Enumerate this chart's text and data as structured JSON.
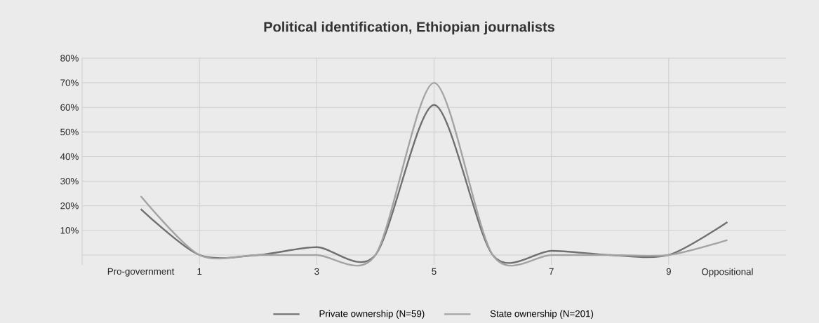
{
  "chart_data": {
    "type": "line",
    "title": "Political identification, Ethiopian journalists",
    "x": [
      0,
      1,
      2,
      3,
      4,
      5,
      6,
      7,
      8,
      9,
      10
    ],
    "series": [
      {
        "name": "Private ownership (N=59)",
        "color": "#707070",
        "values": [
          18.7,
          0,
          0,
          3.2,
          0,
          61,
          0,
          1.7,
          0,
          0,
          13.4
        ]
      },
      {
        "name": "State ownership (N=201)",
        "color": "#a3a3a3",
        "values": [
          23.9,
          0,
          0,
          0,
          0,
          70,
          0,
          0,
          0,
          0,
          6.1
        ]
      }
    ],
    "xlim": [
      -1,
      11
    ],
    "xticks": [
      {
        "value": 0,
        "label": "Pro-government"
      },
      1,
      3,
      5,
      7,
      9,
      {
        "value": 10,
        "label": "Oppositional"
      }
    ],
    "ylim": [
      -4,
      80
    ],
    "yticks": [
      {
        "value": 0,
        "label": null
      },
      {
        "value": 10,
        "label": "10%"
      },
      {
        "value": 20,
        "label": "20%"
      },
      {
        "value": 30,
        "label": "30%"
      },
      {
        "value": 40,
        "label": "40%"
      },
      {
        "value": 50,
        "label": "50%"
      },
      {
        "value": 60,
        "label": "60%"
      },
      {
        "value": 70,
        "label": "70%"
      },
      {
        "value": 80,
        "label": "80%"
      }
    ],
    "grid": true,
    "legend": "bottom",
    "marker": "none",
    "line_style": "solid"
  }
}
